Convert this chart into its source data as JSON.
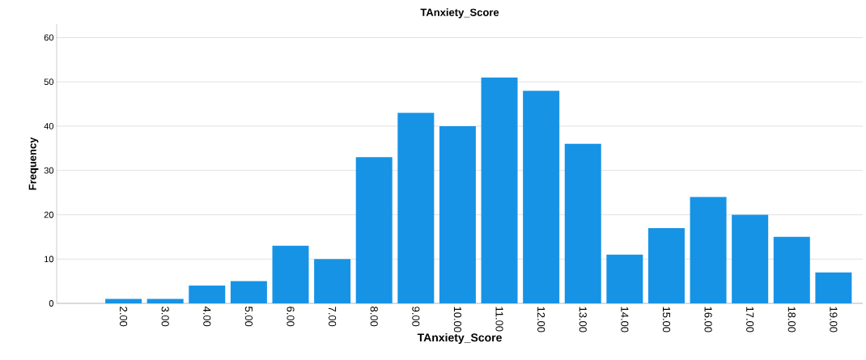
{
  "chart_data": {
    "type": "bar",
    "title": "TAnxiety_Score",
    "xlabel": "TAnxiety_Score",
    "ylabel": "Frequency",
    "categories": [
      "2.00",
      "3.00",
      "4.00",
      "5.00",
      "6.00",
      "7.00",
      "8.00",
      "9.00",
      "10.00",
      "11.00",
      "12.00",
      "13.00",
      "14.00",
      "15.00",
      "16.00",
      "17.00",
      "18.00",
      "19.00"
    ],
    "values": [
      1,
      1,
      4,
      5,
      13,
      10,
      33,
      43,
      40,
      51,
      48,
      36,
      11,
      17,
      24,
      20,
      15,
      7
    ],
    "color": "#1793e6",
    "ylim": [
      0,
      63
    ],
    "yticks": [
      0,
      10,
      20,
      30,
      40,
      50,
      60
    ],
    "grid": "y"
  }
}
